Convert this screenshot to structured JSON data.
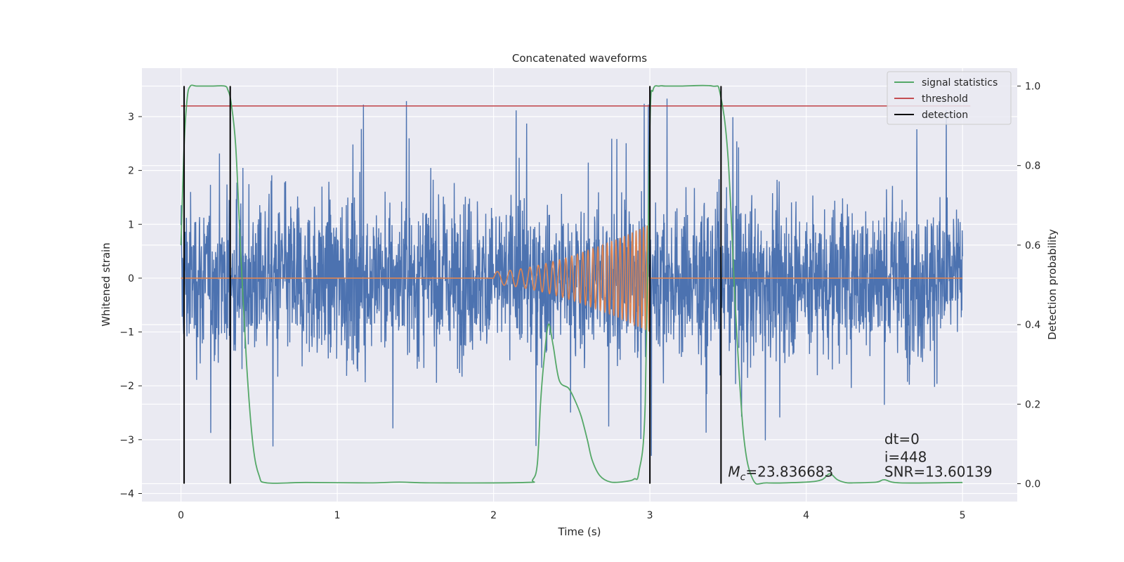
{
  "chart_data": {
    "type": "line",
    "title": "Concatenated waveforms",
    "xlabel": "Time (s)",
    "ylabel": "Whitened strain",
    "y2label": "Detection probability",
    "xlim": [
      -0.25,
      5.35
    ],
    "ylim": [
      -4.15,
      3.9
    ],
    "y2lim": [
      -0.045,
      1.045
    ],
    "x_ticks": [
      0,
      1,
      2,
      3,
      4,
      5
    ],
    "x_tick_labels": [
      "0",
      "1",
      "2",
      "3",
      "4",
      "5"
    ],
    "y_ticks": [
      -4,
      -3,
      -2,
      -1,
      0,
      1,
      2,
      3
    ],
    "y_tick_labels": [
      "−4",
      "−3",
      "−2",
      "−1",
      "0",
      "1",
      "2",
      "3"
    ],
    "y2_ticks": [
      0.0,
      0.2,
      0.4,
      0.6,
      0.8,
      1.0
    ],
    "y2_tick_labels": [
      "0.0",
      "0.2",
      "0.4",
      "0.6",
      "0.8",
      "1.0"
    ],
    "grid": true,
    "legend_position": "top-right",
    "colors": {
      "strain": "#4c72b0",
      "template": "#dd8452",
      "signal_statistics": "#55a868",
      "threshold": "#c44e52",
      "detection": "#000000",
      "background": "#eaeaf2",
      "grid": "#ffffff"
    },
    "series": [
      {
        "name": "signal statistics",
        "axis": "right",
        "x": [
          0,
          0.02,
          0.04,
          0.06,
          0.1,
          0.2,
          0.28,
          0.3,
          0.32,
          0.35,
          0.38,
          0.42,
          0.46,
          0.5,
          0.55,
          0.8,
          1.2,
          1.4,
          1.6,
          2.2,
          2.25,
          2.28,
          2.3,
          2.32,
          2.35,
          2.38,
          2.42,
          2.48,
          2.52,
          2.56,
          2.6,
          2.63,
          2.68,
          2.75,
          2.85,
          2.9,
          2.93,
          2.97,
          3.0,
          3.02,
          3.06,
          3.1,
          3.2,
          3.4,
          3.45,
          3.5,
          3.55,
          3.6,
          3.66,
          3.75,
          4.0,
          4.1,
          4.15,
          4.2,
          4.25,
          4.3,
          4.45,
          4.5,
          4.6,
          5.0
        ],
        "y": [
          0.6,
          0.85,
          0.97,
          1.0,
          1.0,
          1.0,
          1.0,
          0.99,
          0.96,
          0.85,
          0.6,
          0.3,
          0.1,
          0.02,
          0.002,
          0.003,
          0.002,
          0.004,
          0.002,
          0.003,
          0.01,
          0.05,
          0.2,
          0.3,
          0.4,
          0.35,
          0.26,
          0.24,
          0.21,
          0.17,
          0.11,
          0.06,
          0.02,
          0.004,
          0.006,
          0.012,
          0.03,
          0.2,
          0.9,
          0.99,
          1.0,
          1.0,
          1.0,
          1.0,
          0.98,
          0.82,
          0.42,
          0.12,
          0.01,
          0.002,
          0.004,
          0.01,
          0.025,
          0.01,
          0.003,
          0.002,
          0.004,
          0.01,
          0.002,
          0.003
        ]
      },
      {
        "name": "threshold",
        "axis": "right",
        "x": [
          0,
          5.05
        ],
        "y": [
          0.95,
          0.95
        ]
      },
      {
        "name": "detection",
        "axis": "right",
        "style": "vlines",
        "x": [
          0.02,
          0.315,
          3.0,
          3.455
        ],
        "y_range": [
          0,
          1.0
        ]
      },
      {
        "name": "",
        "axis": "left",
        "style": "noise",
        "x_range": [
          0,
          5
        ],
        "rms": 0.75,
        "peak": 3.6
      },
      {
        "name": "",
        "axis": "left",
        "style": "chirp",
        "x_range": [
          2,
          3
        ],
        "flat_range": [
          0,
          5
        ],
        "amp_start": 0.12,
        "amp_end": 1.0
      }
    ],
    "annotations": [
      {
        "text": "dt=0",
        "x": 4.5,
        "y2": 0.1,
        "style": "plain"
      },
      {
        "text": "i=448",
        "x": 4.5,
        "y2": 0.055,
        "style": "plain"
      },
      {
        "text": "SNR=13.60139",
        "x": 4.5,
        "y2": 0.018,
        "style": "plain"
      },
      {
        "text_symbol": "M",
        "text_sub": "c",
        "text_value": "=23.836683",
        "x": 3.5,
        "y2": 0.018,
        "style": "math"
      }
    ]
  }
}
